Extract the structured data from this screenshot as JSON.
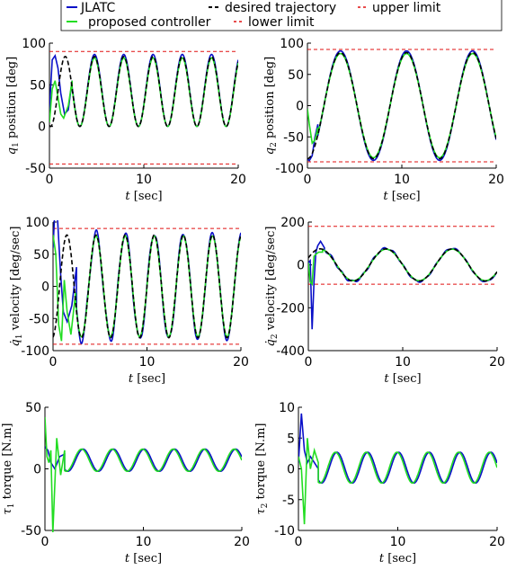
{
  "legend": {
    "entries": [
      {
        "label": "JLATC",
        "color": "#0a10c8",
        "dash": "solid"
      },
      {
        "label": "desired trajectory",
        "color": "#000000",
        "dash": "dashed"
      },
      {
        "label": "upper limit",
        "color": "#e01010",
        "dash": "dashed"
      },
      {
        "label": "proposed controller",
        "color": "#22dd22",
        "dash": "solid"
      },
      {
        "label": "lower limit",
        "color": "#e01010",
        "dash": "dashed"
      }
    ]
  },
  "chart_data": [
    {
      "type": "line",
      "id": "q1-position",
      "ylabel_sym": "q",
      "ylabel_sub": "1",
      "ylabel_text": " position [deg]",
      "xlabel_sym": "t",
      "xlabel_text": " [sec]",
      "xlim": [
        0,
        20
      ],
      "ylim": [
        -50,
        100
      ],
      "xticks": [
        0,
        10,
        20
      ],
      "yticks": [
        -50,
        0,
        50,
        100
      ],
      "upper_limit": 90,
      "lower_limit": -45,
      "desired": {
        "kind": "sine",
        "offset": 42,
        "amp": 42,
        "period": 3.1,
        "phase": 4.0
      },
      "jlatc": {
        "bias": 0,
        "amp_scale": 1.0,
        "extra": 2
      },
      "proposed": {
        "bias": 0,
        "amp_scale": 1.0,
        "extra": 0
      },
      "series": [
        {
          "name": "JLATC",
          "x": [
            0,
            0.3,
            0.6,
            0.9,
            1.2,
            1.6,
            2.0,
            2.4
          ],
          "y": [
            20,
            80,
            85,
            70,
            40,
            15,
            20,
            55
          ]
        },
        {
          "name": "proposed controller",
          "x": [
            0,
            0.3,
            0.6,
            0.9,
            1.2,
            1.5,
            2.0,
            2.4
          ],
          "y": [
            5,
            45,
            55,
            35,
            15,
            10,
            25,
            55
          ]
        }
      ],
      "grid": false
    },
    {
      "type": "line",
      "id": "q2-position",
      "ylabel_sym": "q",
      "ylabel_sub": "2",
      "ylabel_text": " position [deg]",
      "xlabel_sym": "t",
      "xlabel_text": " [sec]",
      "xlim": [
        0,
        20
      ],
      "ylim": [
        -100,
        100
      ],
      "xticks": [
        0,
        10,
        20
      ],
      "yticks": [
        -100,
        -50,
        0,
        50,
        100
      ],
      "upper_limit": 90,
      "lower_limit": -90,
      "desired": {
        "kind": "sine",
        "offset": 0,
        "amp": 85,
        "period": 7.0,
        "phase": 1.75
      },
      "series": [
        {
          "name": "JLATC",
          "x": [
            0,
            0.2,
            0.5,
            0.8,
            1.1
          ],
          "y": [
            -85,
            -88,
            -80,
            -50,
            -30
          ]
        },
        {
          "name": "proposed controller",
          "x": [
            0,
            0.2,
            0.5,
            0.8,
            1.1
          ],
          "y": [
            -5,
            -30,
            -60,
            -55,
            -35
          ]
        }
      ],
      "grid": false
    },
    {
      "type": "line",
      "id": "q1-velocity",
      "ylabel_sym": "q̇",
      "ylabel_sub": "1",
      "ylabel_text": " velocity [deg/sec]",
      "xlabel_sym": "t",
      "xlabel_text": " [sec]",
      "xlim": [
        0,
        20
      ],
      "ylim": [
        -100,
        100
      ],
      "xticks": [
        0,
        10,
        20
      ],
      "yticks": [
        -100,
        -50,
        0,
        50,
        100
      ],
      "upper_limit": 90,
      "lower_limit": -90,
      "desired": {
        "kind": "sine",
        "offset": 0,
        "amp": 80,
        "period": 3.1,
        "phase": 0.7
      },
      "series": [
        {
          "name": "JLATC",
          "x": [
            0,
            0.25,
            0.5,
            0.8,
            1.1,
            1.5,
            2.0,
            2.5
          ],
          "y": [
            60,
            135,
            100,
            20,
            -40,
            -55,
            -30,
            30
          ]
        },
        {
          "name": "proposed controller",
          "x": [
            0,
            0.3,
            0.6,
            0.9,
            1.2,
            1.5,
            1.9,
            2.4
          ],
          "y": [
            80,
            50,
            -60,
            -85,
            10,
            -40,
            -75,
            -10
          ]
        }
      ],
      "grid": false
    },
    {
      "type": "line",
      "id": "q2-velocity",
      "ylabel_sym": "q̇",
      "ylabel_sub": "2",
      "ylabel_text": " velocity [deg/sec]",
      "xlabel_sym": "t",
      "xlabel_text": " [sec]",
      "xlim": [
        0,
        20
      ],
      "ylim": [
        -400,
        200
      ],
      "xticks": [
        0,
        10,
        20
      ],
      "yticks": [
        -400,
        -200,
        0,
        200
      ],
      "upper_limit": 180,
      "lower_limit": -90,
      "desired": {
        "kind": "sine",
        "offset": 0,
        "amp": 75,
        "period": 7.0,
        "phase": -0.5
      },
      "series": [
        {
          "name": "JLATC",
          "x": [
            0,
            0.2,
            0.4,
            0.6,
            0.8,
            1.0,
            1.3,
            1.7
          ],
          "y": [
            10,
            20,
            -300,
            -80,
            60,
            90,
            110,
            80
          ]
        },
        {
          "name": "proposed controller",
          "x": [
            0,
            0.2,
            0.4,
            0.6,
            0.8,
            1.1,
            1.5
          ],
          "y": [
            10,
            -80,
            -90,
            40,
            50,
            60,
            60
          ]
        }
      ],
      "grid": false
    },
    {
      "type": "line",
      "id": "tau1-torque",
      "ylabel_sym": "τ",
      "ylabel_sub": "1",
      "ylabel_text": " torque [N.m]",
      "xlabel_sym": "t",
      "xlabel_text": " [sec]",
      "xlim": [
        0,
        20
      ],
      "ylim": [
        -50,
        50
      ],
      "xticks": [
        0,
        10,
        20
      ],
      "yticks": [
        -50,
        0,
        50
      ],
      "torque": {
        "offset": 7,
        "amp": 9,
        "period": 3.1
      },
      "series": [
        {
          "name": "JLATC",
          "x": [
            0,
            0.3,
            0.6,
            1.0,
            1.5,
            2.0
          ],
          "y": [
            18,
            15,
            5,
            0,
            10,
            12
          ]
        },
        {
          "name": "proposed controller",
          "x": [
            0,
            0.2,
            0.4,
            0.6,
            0.8,
            1.2,
            1.6,
            2.0
          ],
          "y": [
            42,
            10,
            5,
            15,
            -52,
            25,
            -5,
            15
          ]
        }
      ],
      "grid": false
    },
    {
      "type": "line",
      "id": "tau2-torque",
      "ylabel_sym": "τ",
      "ylabel_sub": "2",
      "ylabel_text": " torque [N.m]",
      "xlabel_sym": "t",
      "xlabel_text": " [sec]",
      "xlim": [
        0,
        20
      ],
      "ylim": [
        -10,
        10
      ],
      "xticks": [
        0,
        10,
        20
      ],
      "yticks": [
        -10,
        -5,
        0,
        5,
        10
      ],
      "torque": {
        "offset": 0.2,
        "amp": 2.5,
        "period": 3.1
      },
      "series": [
        {
          "name": "JLATC",
          "x": [
            0,
            0.3,
            0.6,
            0.9,
            1.2,
            1.6,
            2.0
          ],
          "y": [
            1,
            9,
            3,
            1,
            2,
            1,
            0
          ]
        },
        {
          "name": "proposed controller",
          "x": [
            0,
            0.3,
            0.6,
            0.9,
            1.2,
            1.6,
            2.0
          ],
          "y": [
            2,
            0,
            -9,
            5,
            0,
            3,
            1
          ]
        }
      ],
      "grid": false
    }
  ]
}
